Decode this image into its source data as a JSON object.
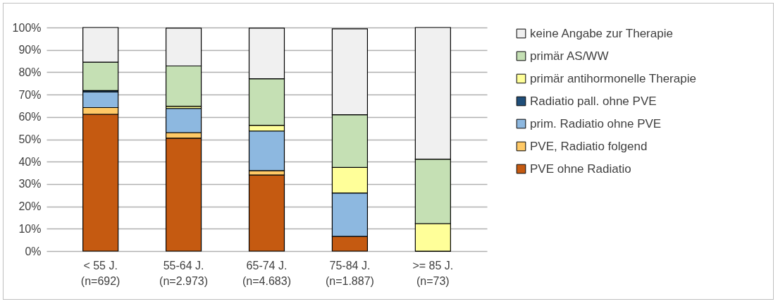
{
  "chart_data": {
    "type": "bar",
    "stacked": true,
    "categories": [
      "< 55 J.\n(n=692)",
      "55-64 J.\n(n=2.973)",
      "65-74 J.\n(n=4.683)",
      "75-84 J.\n(n=1.887)",
      ">= 85 J.\n(n=73)"
    ],
    "series": [
      {
        "name": "PVE ohne Radiatio",
        "color": "#c55a11",
        "values": [
          61.2,
          50.5,
          34.0,
          6.6,
          0
        ]
      },
      {
        "name": "PVE, Radiatio folgend",
        "color": "#ffc966",
        "values": [
          3.0,
          2.5,
          2.0,
          null,
          0
        ]
      },
      {
        "name": "prim. Radiatio ohne PVE",
        "color": "#8db8e0",
        "values": [
          7.0,
          10.8,
          17.7,
          19.4,
          0
        ]
      },
      {
        "name": "Radiatio pall. ohne PVE",
        "color": "#1f4e79",
        "values": [
          0.6,
          null,
          null,
          null,
          0
        ]
      },
      {
        "name": "primär antihormonelle Therapie",
        "color": "#ffff99",
        "values": [
          0,
          1.0,
          2.6,
          11.4,
          12.3
        ]
      },
      {
        "name": "primär AS/WW",
        "color": "#c5e0b4",
        "values": [
          12.7,
          18.0,
          20.8,
          23.6,
          28.8
        ]
      },
      {
        "name": "keine Angabe zur Therapie",
        "color": "#f0f0f0",
        "values": [
          15.5,
          16.9,
          22.6,
          38.4,
          58.9
        ]
      }
    ],
    "ylim": [
      0,
      100
    ],
    "yticks": [
      {
        "value": 0,
        "label": "0%"
      },
      {
        "value": 10,
        "label": "10%"
      },
      {
        "value": 20,
        "label": "20%"
      },
      {
        "value": 30,
        "label": "30%"
      },
      {
        "value": 40,
        "label": "40%"
      },
      {
        "value": 50,
        "label": "50%"
      },
      {
        "value": 60,
        "label": "60%"
      },
      {
        "value": 70,
        "label": "70%"
      },
      {
        "value": 80,
        "label": "80%"
      },
      {
        "value": 90,
        "label": "90%"
      },
      {
        "value": 100,
        "label": "100%"
      }
    ],
    "grid": "y",
    "legend": "right"
  }
}
